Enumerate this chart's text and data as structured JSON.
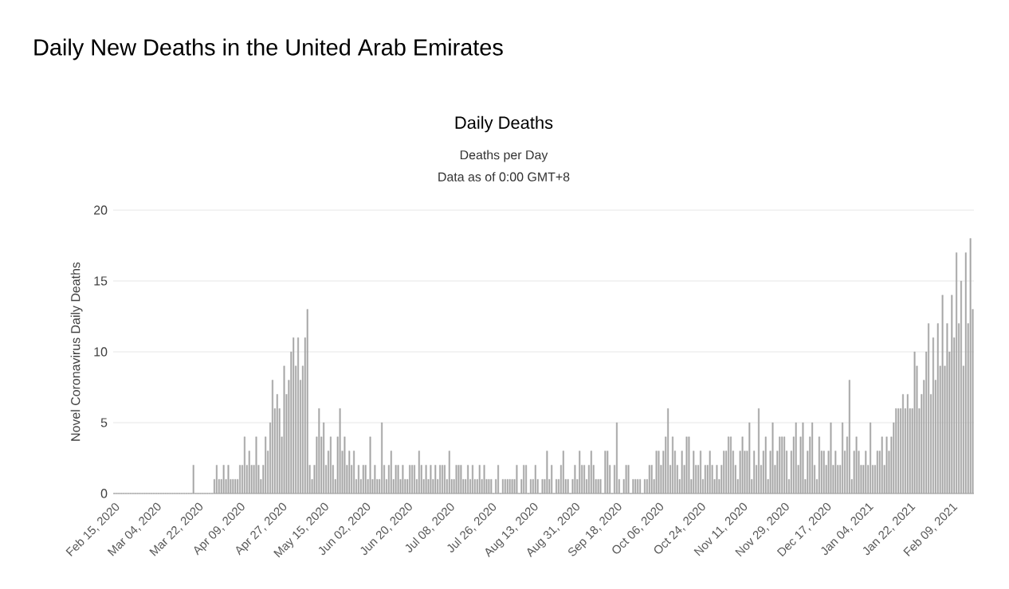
{
  "chart_data": {
    "type": "bar",
    "title": "Daily New Deaths in the United Arab Emirates",
    "subtitle": "Daily Deaths",
    "annotations": [
      "Deaths per Day",
      "Data as of 0:00 GMT+8"
    ],
    "ylabel": "Novel Coronavirus Daily Deaths",
    "color": "#a6a6a6",
    "ylim": [
      0,
      20
    ],
    "yticks": [
      0,
      5,
      10,
      15,
      20
    ],
    "grid": "y",
    "categories": [
      "Feb 15, 2020",
      null,
      null,
      null,
      null,
      null,
      null,
      null,
      null,
      null,
      null,
      null,
      null,
      null,
      null,
      null,
      null,
      null,
      "Mar 04, 2020",
      null,
      null,
      null,
      null,
      null,
      null,
      null,
      null,
      null,
      null,
      null,
      null,
      null,
      null,
      null,
      null,
      null,
      "Mar 22, 2020",
      null,
      null,
      null,
      null,
      null,
      null,
      null,
      null,
      null,
      null,
      null,
      null,
      null,
      null,
      null,
      null,
      null,
      "Apr 09, 2020",
      null,
      null,
      null,
      null,
      null,
      null,
      null,
      null,
      null,
      null,
      null,
      null,
      null,
      null,
      null,
      null,
      null,
      "Apr 27, 2020",
      null,
      null,
      null,
      null,
      null,
      null,
      null,
      null,
      null,
      null,
      null,
      null,
      null,
      null,
      null,
      null,
      null,
      "May 15, 2020",
      null,
      null,
      null,
      null,
      null,
      null,
      null,
      null,
      null,
      null,
      null,
      null,
      null,
      null,
      null,
      null,
      null,
      "Jun 02, 2020",
      null,
      null,
      null,
      null,
      null,
      null,
      null,
      null,
      null,
      null,
      null,
      null,
      null,
      null,
      null,
      null,
      null,
      "Jun 20, 2020",
      null,
      null,
      null,
      null,
      null,
      null,
      null,
      null,
      null,
      null,
      null,
      null,
      null,
      null,
      null,
      null,
      null,
      "Jul 08, 2020",
      null,
      null,
      null,
      null,
      null,
      null,
      null,
      null,
      null,
      null,
      null,
      null,
      null,
      null,
      null,
      null,
      null,
      "Jul 26, 2020",
      null,
      null,
      null,
      null,
      null,
      null,
      null,
      null,
      null,
      null,
      null,
      null,
      null,
      null,
      null,
      null,
      null,
      "Aug 13, 2020",
      null,
      null,
      null,
      null,
      null,
      null,
      null,
      null,
      null,
      null,
      null,
      null,
      null,
      null,
      null,
      null,
      null,
      "Aug 31, 2020",
      null,
      null,
      null,
      null,
      null,
      null,
      null,
      null,
      null,
      null,
      null,
      null,
      null,
      null,
      null,
      null,
      null,
      "Sep 18, 2020",
      null,
      null,
      null,
      null,
      null,
      null,
      null,
      null,
      null,
      null,
      null,
      null,
      null,
      null,
      null,
      null,
      null,
      "Oct 06, 2020",
      null,
      null,
      null,
      null,
      null,
      null,
      null,
      null,
      null,
      null,
      null,
      null,
      null,
      null,
      null,
      null,
      null,
      "Oct 24, 2020",
      null,
      null,
      null,
      null,
      null,
      null,
      null,
      null,
      null,
      null,
      null,
      null,
      null,
      null,
      null,
      null,
      null,
      "Nov 11, 2020",
      null,
      null,
      null,
      null,
      null,
      null,
      null,
      null,
      null,
      null,
      null,
      null,
      null,
      null,
      null,
      null,
      null,
      "Nov 29, 2020",
      null,
      null,
      null,
      null,
      null,
      null,
      null,
      null,
      null,
      null,
      null,
      null,
      null,
      null,
      null,
      null,
      null,
      "Dec 17, 2020",
      null,
      null,
      null,
      null,
      null,
      null,
      null,
      null,
      null,
      null,
      null,
      null,
      null,
      null,
      null,
      null,
      null,
      "Jan 04, 2021",
      null,
      null,
      null,
      null,
      null,
      null,
      null,
      null,
      null,
      null,
      null,
      null,
      null,
      null,
      null,
      null,
      null,
      "Jan 22, 2021",
      null,
      null,
      null,
      null,
      null,
      null,
      null,
      null,
      null,
      null,
      null,
      null,
      null,
      null,
      null,
      null,
      null,
      "Feb 09, 2021",
      null,
      null,
      null,
      null,
      null,
      null,
      null,
      null,
      null
    ],
    "values": [
      0,
      0,
      0,
      0,
      0,
      0,
      0,
      0,
      0,
      0,
      0,
      0,
      0,
      0,
      0,
      0,
      0,
      0,
      0,
      0,
      0,
      0,
      0,
      0,
      0,
      0,
      0,
      0,
      0,
      0,
      0,
      0,
      0,
      0,
      2,
      0,
      0,
      0,
      0,
      0,
      0,
      0,
      0,
      1,
      2,
      1,
      1,
      2,
      1,
      2,
      1,
      1,
      1,
      1,
      2,
      2,
      4,
      2,
      3,
      2,
      2,
      4,
      2,
      1,
      2,
      4,
      3,
      5,
      8,
      6,
      7,
      6,
      4,
      9,
      7,
      8,
      10,
      11,
      9,
      11,
      8,
      9,
      11,
      13,
      2,
      1,
      2,
      4,
      6,
      4,
      5,
      2,
      3,
      4,
      2,
      1,
      4,
      6,
      3,
      4,
      2,
      3,
      2,
      3,
      1,
      2,
      1,
      2,
      2,
      1,
      4,
      1,
      2,
      1,
      1,
      5,
      2,
      1,
      2,
      3,
      1,
      2,
      2,
      1,
      2,
      1,
      1,
      2,
      2,
      2,
      1,
      3,
      2,
      1,
      2,
      1,
      2,
      1,
      2,
      1,
      2,
      2,
      2,
      1,
      3,
      1,
      1,
      2,
      2,
      2,
      1,
      1,
      2,
      1,
      2,
      1,
      1,
      2,
      1,
      2,
      1,
      1,
      1,
      0,
      1,
      2,
      0,
      1,
      1,
      1,
      1,
      1,
      1,
      2,
      0,
      1,
      2,
      2,
      0,
      1,
      1,
      2,
      1,
      0,
      1,
      1,
      3,
      1,
      2,
      0,
      1,
      1,
      2,
      3,
      1,
      1,
      0,
      1,
      2,
      1,
      3,
      2,
      2,
      1,
      2,
      3,
      2,
      1,
      1,
      1,
      0,
      3,
      3,
      2,
      0,
      2,
      5,
      1,
      0,
      1,
      2,
      2,
      0,
      1,
      1,
      1,
      1,
      0,
      1,
      1,
      2,
      2,
      1,
      3,
      3,
      2,
      3,
      4,
      6,
      2,
      4,
      3,
      2,
      1,
      3,
      2,
      4,
      4,
      1,
      3,
      2,
      2,
      3,
      1,
      2,
      2,
      3,
      2,
      1,
      2,
      1,
      2,
      3,
      3,
      4,
      4,
      3,
      2,
      1,
      3,
      4,
      3,
      3,
      5,
      1,
      3,
      2,
      6,
      2,
      3,
      4,
      1,
      3,
      5,
      2,
      3,
      4,
      4,
      4,
      3,
      1,
      3,
      4,
      5,
      2,
      4,
      5,
      1,
      3,
      4,
      5,
      2,
      1,
      4,
      3,
      3,
      2,
      3,
      5,
      2,
      3,
      2,
      2,
      5,
      3,
      4,
      8,
      1,
      3,
      4,
      3,
      2,
      2,
      3,
      2,
      5,
      2,
      2,
      3,
      3,
      4,
      2,
      4,
      3,
      4,
      5,
      6,
      6,
      6,
      7,
      6,
      7,
      6,
      6,
      10,
      9,
      6,
      7,
      8,
      10,
      12,
      7,
      11,
      8,
      12,
      9,
      14,
      9,
      12,
      10,
      14,
      11,
      17,
      12,
      15,
      9,
      17,
      12,
      18,
      13
    ]
  }
}
